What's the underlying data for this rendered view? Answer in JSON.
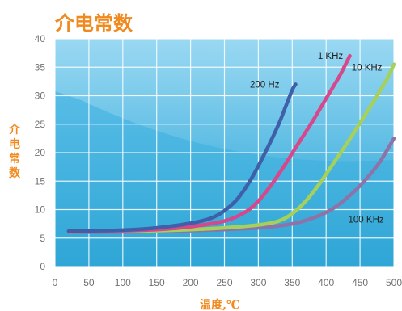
{
  "chart_data": {
    "type": "line",
    "title": "介电常数",
    "xlabel": "温度,℃",
    "ylabel": "介电常数",
    "xlim": [
      0,
      500
    ],
    "ylim": [
      0,
      40
    ],
    "xticks": [
      0,
      50,
      100,
      150,
      200,
      250,
      300,
      350,
      400,
      450,
      500
    ],
    "yticks": [
      0,
      5,
      10,
      15,
      20,
      25,
      30,
      35,
      40
    ],
    "grid": true,
    "legend": "none",
    "colors": {
      "title": "#F08A1F",
      "axis_label": "#F08A1F",
      "plot_bg": "#3FB2DF",
      "grid": "#FFFFFF"
    },
    "series": [
      {
        "name": "200 Hz",
        "color": "#3F5FA8",
        "x": [
          20,
          100,
          150,
          200,
          230,
          250,
          270,
          290,
          310,
          330,
          340,
          350,
          355
        ],
        "y": [
          6.2,
          6.4,
          6.8,
          7.6,
          8.5,
          9.8,
          12,
          15.5,
          20,
          25,
          28,
          31,
          32
        ]
      },
      {
        "name": "1 KHz",
        "color": "#D7478B",
        "x": [
          20,
          100,
          150,
          200,
          250,
          280,
          300,
          320,
          340,
          360,
          380,
          400,
          420,
          435
        ],
        "y": [
          6.2,
          6.3,
          6.5,
          7,
          8,
          9.5,
          11.5,
          14.5,
          18,
          21.8,
          25.5,
          29.5,
          33.5,
          37
        ]
      },
      {
        "name": "10 KHz",
        "color": "#A5D05A",
        "x": [
          20,
          100,
          150,
          200,
          250,
          300,
          330,
          350,
          370,
          390,
          410,
          430,
          450,
          470,
          490,
          500
        ],
        "y": [
          6.1,
          6.2,
          6.3,
          6.5,
          6.8,
          7.3,
          8,
          9.3,
          11.5,
          14.5,
          18,
          21.5,
          25.2,
          29,
          33,
          35.5
        ]
      },
      {
        "name": "100 KHz",
        "color": "#8E73A8",
        "x": [
          20,
          100,
          200,
          300,
          350,
          380,
          400,
          420,
          440,
          460,
          480,
          500
        ],
        "y": [
          6,
          6.1,
          6.3,
          6.8,
          7.5,
          8.5,
          9.5,
          11,
          13,
          15.5,
          18.5,
          22.5
        ]
      }
    ]
  }
}
